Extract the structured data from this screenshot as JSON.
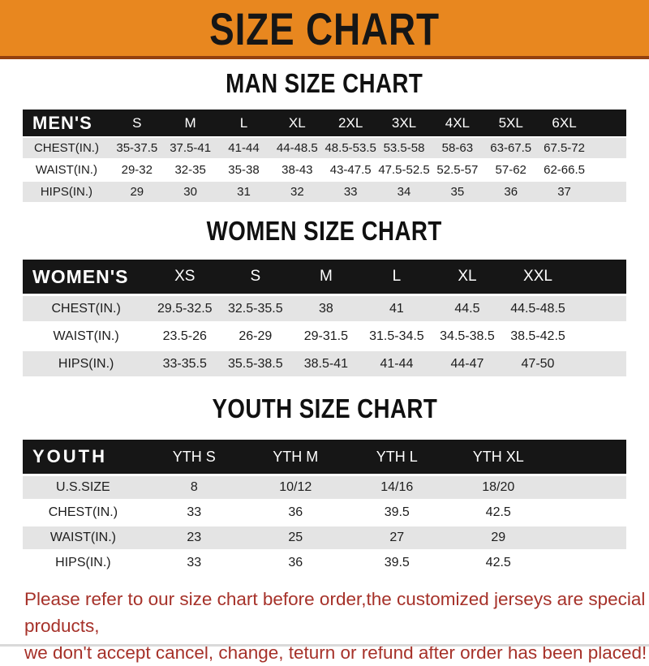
{
  "banner": {
    "title": "SIZE CHART",
    "background_color": "#E8871F",
    "border_color": "#93400F"
  },
  "colors": {
    "header_bar": "#161616",
    "header_text": "#FFFFFF",
    "stripe_gray": "#E4E4E4",
    "table_text": "#1D1D1D",
    "footer_red": "#A63129"
  },
  "chart_data": [
    {
      "type": "table",
      "title": "MAN SIZE CHART",
      "corner_label": "MEN'S",
      "columns": [
        "S",
        "M",
        "L",
        "XL",
        "2XL",
        "3XL",
        "4XL",
        "5XL",
        "6XL"
      ],
      "rows": [
        {
          "label": "CHEST(IN.)",
          "values": [
            "35-37.5",
            "37.5-41",
            "41-44",
            "44-48.5",
            "48.5-53.5",
            "53.5-58",
            "58-63",
            "63-67.5",
            "67.5-72"
          ]
        },
        {
          "label": "WAIST(IN.)",
          "values": [
            "29-32",
            "32-35",
            "35-38",
            "38-43",
            "43-47.5",
            "47.5-52.5",
            "52.5-57",
            "57-62",
            "62-66.5"
          ]
        },
        {
          "label": "HIPS(IN.)",
          "values": [
            "29",
            "30",
            "31",
            "32",
            "33",
            "34",
            "35",
            "36",
            "37"
          ]
        }
      ]
    },
    {
      "type": "table",
      "title": "WOMEN SIZE CHART",
      "corner_label": "WOMEN'S",
      "columns": [
        "XS",
        "S",
        "M",
        "L",
        "XL",
        "XXL"
      ],
      "rows": [
        {
          "label": "CHEST(IN.)",
          "values": [
            "29.5-32.5",
            "32.5-35.5",
            "38",
            "41",
            "44.5",
            "44.5-48.5"
          ]
        },
        {
          "label": "WAIST(IN.)",
          "values": [
            "23.5-26",
            "26-29",
            "29-31.5",
            "31.5-34.5",
            "34.5-38.5",
            "38.5-42.5"
          ]
        },
        {
          "label": "HIPS(IN.)",
          "values": [
            "33-35.5",
            "35.5-38.5",
            "38.5-41",
            "41-44",
            "44-47",
            "47-50"
          ]
        }
      ]
    },
    {
      "type": "table",
      "title": "YOUTH SIZE CHART",
      "corner_label": "YOUTH",
      "columns": [
        "YTH S",
        "YTH M",
        "YTH L",
        "YTH XL"
      ],
      "rows": [
        {
          "label": "U.S.SIZE",
          "values": [
            "8",
            "10/12",
            "14/16",
            "18/20"
          ]
        },
        {
          "label": "CHEST(IN.)",
          "values": [
            "33",
            "36",
            "39.5",
            "42.5"
          ]
        },
        {
          "label": "WAIST(IN.)",
          "values": [
            "23",
            "25",
            "27",
            "29"
          ]
        },
        {
          "label": "HIPS(IN.)",
          "values": [
            "33",
            "36",
            "39.5",
            "42.5"
          ]
        }
      ]
    }
  ],
  "footer": {
    "lines": [
      "Please refer to our size chart before order,the customized jerseys are special products,",
      "we don't accept cancel, change, teturn or refund after order has been placed!"
    ]
  }
}
